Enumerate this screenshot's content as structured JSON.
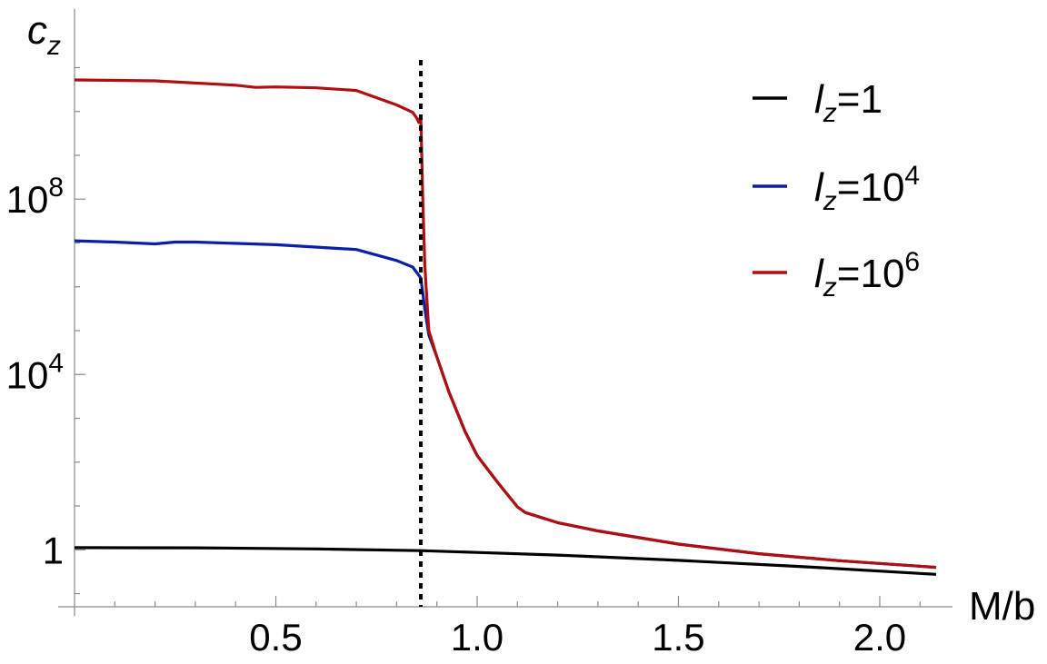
{
  "chart_data": {
    "type": "line",
    "ylog": true,
    "xlabel": "M/b",
    "ylabel": {
      "main": "c",
      "sub": "z"
    },
    "xlim": [
      0.0,
      2.14
    ],
    "ylim_log10": [
      -1.3,
      11.3
    ],
    "x_ticks": [
      {
        "value": 0.5,
        "label": "0.5"
      },
      {
        "value": 1.0,
        "label": "1.0"
      },
      {
        "value": 1.5,
        "label": "1.5"
      },
      {
        "value": 2.0,
        "label": "2.0"
      }
    ],
    "y_ticks": [
      {
        "log10": 0,
        "base": "1",
        "exp": ""
      },
      {
        "log10": 4,
        "base": "10",
        "exp": "4"
      },
      {
        "log10": 8,
        "base": "10",
        "exp": "8"
      }
    ],
    "vline": {
      "x": 0.86,
      "style": "dotted",
      "color": "#000000"
    },
    "legend": {
      "position": "top-right"
    },
    "series": [
      {
        "name": "l_z=1",
        "legend": {
          "main": "l",
          "sub": "z",
          "rest": "=1",
          "sup": ""
        },
        "color": "#000000",
        "points": [
          [
            0.0,
            0.05
          ],
          [
            0.3,
            0.045
          ],
          [
            0.6,
            0.02
          ],
          [
            0.86,
            -0.02
          ],
          [
            1.0,
            -0.06
          ],
          [
            1.2,
            -0.12
          ],
          [
            1.5,
            -0.24
          ],
          [
            1.8,
            -0.38
          ],
          [
            2.14,
            -0.56
          ]
        ]
      },
      {
        "name": "l_z=10^4",
        "legend": {
          "main": "l",
          "sub": "z",
          "rest": "=10",
          "sup": "4"
        },
        "color": "#0a1fa8",
        "points": [
          [
            0.0,
            7.05
          ],
          [
            0.1,
            7.02
          ],
          [
            0.2,
            6.98
          ],
          [
            0.25,
            7.02
          ],
          [
            0.3,
            7.02
          ],
          [
            0.5,
            6.96
          ],
          [
            0.7,
            6.85
          ],
          [
            0.8,
            6.6
          ],
          [
            0.84,
            6.45
          ],
          [
            0.86,
            6.2
          ],
          [
            0.87,
            5.5
          ],
          [
            0.88,
            4.9
          ],
          [
            0.9,
            4.4
          ],
          [
            0.93,
            3.6
          ],
          [
            0.97,
            2.7
          ],
          [
            1.0,
            2.15
          ],
          [
            1.05,
            1.55
          ],
          [
            1.1,
            0.98
          ],
          [
            1.12,
            0.85
          ],
          [
            1.2,
            0.62
          ],
          [
            1.3,
            0.43
          ],
          [
            1.5,
            0.13
          ],
          [
            1.7,
            -0.09
          ],
          [
            1.9,
            -0.25
          ],
          [
            2.14,
            -0.4
          ]
        ]
      },
      {
        "name": "l_z=10^6",
        "legend": {
          "main": "l",
          "sub": "z",
          "rest": "=10",
          "sup": "6"
        },
        "color": "#b00f0f",
        "points": [
          [
            0.0,
            10.72
          ],
          [
            0.2,
            10.7
          ],
          [
            0.4,
            10.6
          ],
          [
            0.45,
            10.55
          ],
          [
            0.5,
            10.56
          ],
          [
            0.6,
            10.54
          ],
          [
            0.7,
            10.48
          ],
          [
            0.8,
            10.15
          ],
          [
            0.84,
            9.98
          ],
          [
            0.85,
            9.85
          ],
          [
            0.855,
            9.75
          ],
          [
            0.86,
            9.9
          ],
          [
            0.865,
            8.0
          ],
          [
            0.87,
            6.5
          ],
          [
            0.88,
            5.0
          ],
          [
            0.9,
            4.4
          ],
          [
            0.93,
            3.6
          ],
          [
            0.97,
            2.7
          ],
          [
            1.0,
            2.15
          ],
          [
            1.05,
            1.55
          ],
          [
            1.1,
            0.98
          ],
          [
            1.12,
            0.85
          ],
          [
            1.2,
            0.62
          ],
          [
            1.3,
            0.43
          ],
          [
            1.5,
            0.13
          ],
          [
            1.7,
            -0.09
          ],
          [
            1.9,
            -0.25
          ],
          [
            2.14,
            -0.4
          ]
        ]
      }
    ]
  }
}
